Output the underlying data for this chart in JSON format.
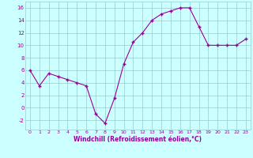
{
  "data_points": [
    [
      0,
      6
    ],
    [
      1,
      3.5
    ],
    [
      2,
      5.5
    ],
    [
      3,
      5
    ],
    [
      4,
      4.5
    ],
    [
      5,
      4
    ],
    [
      6,
      3.5
    ],
    [
      7,
      -1
    ],
    [
      8,
      -2.5
    ],
    [
      9,
      1.5
    ],
    [
      10,
      7
    ],
    [
      11,
      10.5
    ],
    [
      12,
      12
    ],
    [
      13,
      14
    ],
    [
      14,
      15
    ],
    [
      15,
      15.5
    ],
    [
      16,
      16
    ],
    [
      17,
      16
    ],
    [
      18,
      13
    ],
    [
      19,
      10
    ],
    [
      20,
      10
    ],
    [
      21,
      10
    ],
    [
      22,
      10
    ],
    [
      23,
      11
    ]
  ],
  "line_color": "#990099",
  "marker_color": "#990099",
  "bg_color": "#ccffff",
  "grid_color": "#99cccc",
  "axis_color": "#990099",
  "xlabel": "Windchill (Refroidissement éolien,°C)",
  "xlabel_color": "#990099",
  "ylim": [
    -3.5,
    17
  ],
  "xlim": [
    -0.5,
    23.5
  ],
  "yticks": [
    -2,
    0,
    2,
    4,
    6,
    8,
    10,
    12,
    14,
    16
  ],
  "xticks": [
    0,
    1,
    2,
    3,
    4,
    5,
    6,
    7,
    8,
    9,
    10,
    11,
    12,
    13,
    14,
    15,
    16,
    17,
    18,
    19,
    20,
    21,
    22,
    23
  ]
}
